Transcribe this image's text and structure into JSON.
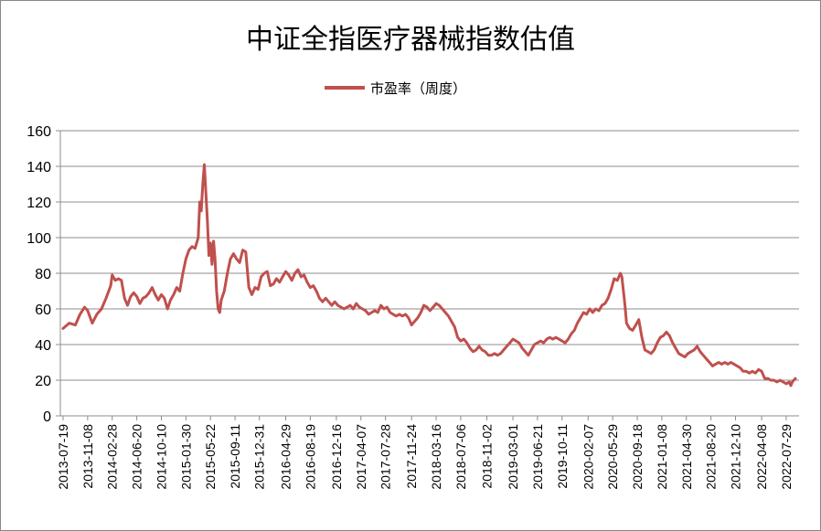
{
  "chart_data": {
    "type": "line",
    "title": "中证全指医疗器械指数估值",
    "xlabel": "",
    "ylabel": "",
    "ylim": [
      0,
      160
    ],
    "yticks": [
      0,
      20,
      40,
      60,
      80,
      100,
      120,
      140,
      160
    ],
    "grid": "horizontal",
    "legend_position": "top",
    "series": [
      {
        "name": "市盈率（周度）",
        "color": "#C0504D",
        "values": [
          [
            "2013-07-19",
            49
          ],
          [
            "2013-08-16",
            52
          ],
          [
            "2013-09-13",
            51
          ],
          [
            "2013-10-04",
            57
          ],
          [
            "2013-10-25",
            61
          ],
          [
            "2013-11-08",
            59
          ],
          [
            "2013-11-29",
            52
          ],
          [
            "2013-12-20",
            57
          ],
          [
            "2014-01-10",
            60
          ],
          [
            "2014-01-31",
            66
          ],
          [
            "2014-02-21",
            73
          ],
          [
            "2014-02-28",
            79
          ],
          [
            "2014-03-14",
            76
          ],
          [
            "2014-03-28",
            77
          ],
          [
            "2014-04-11",
            76
          ],
          [
            "2014-04-25",
            66
          ],
          [
            "2014-05-09",
            62
          ],
          [
            "2014-05-23",
            67
          ],
          [
            "2014-06-06",
            69
          ],
          [
            "2014-06-20",
            67
          ],
          [
            "2014-07-04",
            63
          ],
          [
            "2014-07-18",
            66
          ],
          [
            "2014-08-01",
            67
          ],
          [
            "2014-08-15",
            69
          ],
          [
            "2014-08-29",
            72
          ],
          [
            "2014-09-12",
            68
          ],
          [
            "2014-09-26",
            65
          ],
          [
            "2014-10-10",
            68
          ],
          [
            "2014-10-24",
            66
          ],
          [
            "2014-11-07",
            60
          ],
          [
            "2014-11-21",
            65
          ],
          [
            "2014-12-05",
            68
          ],
          [
            "2014-12-19",
            72
          ],
          [
            "2015-01-02",
            70
          ],
          [
            "2015-01-16",
            80
          ],
          [
            "2015-01-30",
            88
          ],
          [
            "2015-02-13",
            93
          ],
          [
            "2015-02-27",
            95
          ],
          [
            "2015-03-13",
            94
          ],
          [
            "2015-03-27",
            100
          ],
          [
            "2015-04-03",
            120
          ],
          [
            "2015-04-10",
            115
          ],
          [
            "2015-04-17",
            130
          ],
          [
            "2015-04-24",
            141
          ],
          [
            "2015-05-01",
            125
          ],
          [
            "2015-05-08",
            110
          ],
          [
            "2015-05-15",
            90
          ],
          [
            "2015-05-22",
            97
          ],
          [
            "2015-05-29",
            85
          ],
          [
            "2015-06-05",
            98
          ],
          [
            "2015-06-12",
            88
          ],
          [
            "2015-06-19",
            70
          ],
          [
            "2015-06-26",
            60
          ],
          [
            "2015-07-03",
            58
          ],
          [
            "2015-07-10",
            65
          ],
          [
            "2015-07-24",
            70
          ],
          [
            "2015-08-07",
            80
          ],
          [
            "2015-08-21",
            88
          ],
          [
            "2015-09-04",
            91
          ],
          [
            "2015-09-18",
            88
          ],
          [
            "2015-10-02",
            86
          ],
          [
            "2015-10-16",
            93
          ],
          [
            "2015-10-30",
            92
          ],
          [
            "2015-11-13",
            72
          ],
          [
            "2015-11-27",
            68
          ],
          [
            "2015-12-11",
            72
          ],
          [
            "2015-12-25",
            71
          ],
          [
            "2016-01-08",
            78
          ],
          [
            "2016-01-22",
            80
          ],
          [
            "2016-02-05",
            81
          ],
          [
            "2016-02-19",
            73
          ],
          [
            "2016-03-04",
            74
          ],
          [
            "2016-03-18",
            77
          ],
          [
            "2016-04-01",
            75
          ],
          [
            "2016-04-15",
            78
          ],
          [
            "2016-04-29",
            81
          ],
          [
            "2016-05-13",
            79
          ],
          [
            "2016-05-27",
            76
          ],
          [
            "2016-06-10",
            80
          ],
          [
            "2016-06-24",
            82
          ],
          [
            "2016-07-08",
            78
          ],
          [
            "2016-07-22",
            79
          ],
          [
            "2016-08-05",
            75
          ],
          [
            "2016-08-19",
            72
          ],
          [
            "2016-09-02",
            73
          ],
          [
            "2016-09-16",
            70
          ],
          [
            "2016-09-30",
            66
          ],
          [
            "2016-10-14",
            64
          ],
          [
            "2016-10-28",
            66
          ],
          [
            "2016-11-11",
            64
          ],
          [
            "2016-11-25",
            62
          ],
          [
            "2016-12-09",
            64
          ],
          [
            "2016-12-23",
            62
          ],
          [
            "2017-01-06",
            61
          ],
          [
            "2017-01-20",
            60
          ],
          [
            "2017-02-03",
            61
          ],
          [
            "2017-02-17",
            62
          ],
          [
            "2017-03-03",
            60
          ],
          [
            "2017-03-17",
            63
          ],
          [
            "2017-03-31",
            61
          ],
          [
            "2017-04-14",
            60
          ],
          [
            "2017-04-28",
            59
          ],
          [
            "2017-05-12",
            57
          ],
          [
            "2017-05-26",
            58
          ],
          [
            "2017-06-09",
            59
          ],
          [
            "2017-06-23",
            58
          ],
          [
            "2017-07-07",
            62
          ],
          [
            "2017-07-21",
            60
          ],
          [
            "2017-08-04",
            61
          ],
          [
            "2017-08-18",
            58
          ],
          [
            "2017-09-01",
            57
          ],
          [
            "2017-09-15",
            56
          ],
          [
            "2017-09-29",
            57
          ],
          [
            "2017-10-13",
            56
          ],
          [
            "2017-10-27",
            57
          ],
          [
            "2017-11-10",
            55
          ],
          [
            "2017-11-24",
            51
          ],
          [
            "2017-12-08",
            53
          ],
          [
            "2017-12-22",
            55
          ],
          [
            "2018-01-05",
            58
          ],
          [
            "2018-01-19",
            62
          ],
          [
            "2018-02-02",
            61
          ],
          [
            "2018-02-16",
            59
          ],
          [
            "2018-03-02",
            61
          ],
          [
            "2018-03-16",
            63
          ],
          [
            "2018-03-30",
            62
          ],
          [
            "2018-04-13",
            60
          ],
          [
            "2018-04-27",
            58
          ],
          [
            "2018-05-11",
            56
          ],
          [
            "2018-05-25",
            53
          ],
          [
            "2018-06-08",
            50
          ],
          [
            "2018-06-22",
            44
          ],
          [
            "2018-07-06",
            42
          ],
          [
            "2018-07-20",
            43
          ],
          [
            "2018-08-03",
            41
          ],
          [
            "2018-08-17",
            38
          ],
          [
            "2018-08-31",
            36
          ],
          [
            "2018-09-14",
            37
          ],
          [
            "2018-09-28",
            39
          ],
          [
            "2018-10-12",
            37
          ],
          [
            "2018-10-26",
            36
          ],
          [
            "2018-11-09",
            34
          ],
          [
            "2018-11-23",
            34
          ],
          [
            "2018-12-07",
            35
          ],
          [
            "2018-12-21",
            34
          ],
          [
            "2019-01-04",
            35
          ],
          [
            "2019-01-18",
            37
          ],
          [
            "2019-02-01",
            39
          ],
          [
            "2019-02-15",
            41
          ],
          [
            "2019-03-01",
            43
          ],
          [
            "2019-03-15",
            42
          ],
          [
            "2019-03-29",
            41
          ],
          [
            "2019-04-12",
            38
          ],
          [
            "2019-04-26",
            36
          ],
          [
            "2019-05-10",
            34
          ],
          [
            "2019-05-24",
            37
          ],
          [
            "2019-06-07",
            40
          ],
          [
            "2019-06-21",
            41
          ],
          [
            "2019-07-05",
            42
          ],
          [
            "2019-07-19",
            41
          ],
          [
            "2019-08-02",
            43
          ],
          [
            "2019-08-16",
            44
          ],
          [
            "2019-08-30",
            43
          ],
          [
            "2019-09-13",
            44
          ],
          [
            "2019-09-27",
            43
          ],
          [
            "2019-10-11",
            42
          ],
          [
            "2019-10-25",
            41
          ],
          [
            "2019-11-08",
            43
          ],
          [
            "2019-11-22",
            46
          ],
          [
            "2019-12-06",
            48
          ],
          [
            "2019-12-20",
            52
          ],
          [
            "2020-01-03",
            55
          ],
          [
            "2020-01-17",
            58
          ],
          [
            "2020-01-31",
            57
          ],
          [
            "2020-02-14",
            60
          ],
          [
            "2020-02-28",
            58
          ],
          [
            "2020-03-13",
            60
          ],
          [
            "2020-03-27",
            59
          ],
          [
            "2020-04-10",
            62
          ],
          [
            "2020-04-24",
            63
          ],
          [
            "2020-05-08",
            66
          ],
          [
            "2020-05-22",
            71
          ],
          [
            "2020-06-05",
            77
          ],
          [
            "2020-06-19",
            76
          ],
          [
            "2020-07-03",
            80
          ],
          [
            "2020-07-10",
            78
          ],
          [
            "2020-07-17",
            70
          ],
          [
            "2020-07-24",
            62
          ],
          [
            "2020-07-31",
            52
          ],
          [
            "2020-08-14",
            49
          ],
          [
            "2020-08-28",
            48
          ],
          [
            "2020-09-11",
            51
          ],
          [
            "2020-09-25",
            54
          ],
          [
            "2020-10-09",
            44
          ],
          [
            "2020-10-23",
            37
          ],
          [
            "2020-11-06",
            36
          ],
          [
            "2020-11-20",
            35
          ],
          [
            "2020-12-04",
            37
          ],
          [
            "2020-12-18",
            41
          ],
          [
            "2021-01-01",
            44
          ],
          [
            "2021-01-15",
            45
          ],
          [
            "2021-01-29",
            47
          ],
          [
            "2021-02-12",
            45
          ],
          [
            "2021-02-26",
            41
          ],
          [
            "2021-03-12",
            38
          ],
          [
            "2021-03-26",
            35
          ],
          [
            "2021-04-09",
            34
          ],
          [
            "2021-04-23",
            33
          ],
          [
            "2021-05-07",
            35
          ],
          [
            "2021-05-21",
            36
          ],
          [
            "2021-06-04",
            37
          ],
          [
            "2021-06-18",
            39
          ],
          [
            "2021-07-02",
            36
          ],
          [
            "2021-07-16",
            34
          ],
          [
            "2021-07-30",
            32
          ],
          [
            "2021-08-13",
            30
          ],
          [
            "2021-08-27",
            28
          ],
          [
            "2021-09-10",
            29
          ],
          [
            "2021-09-24",
            30
          ],
          [
            "2021-10-08",
            29
          ],
          [
            "2021-10-22",
            30
          ],
          [
            "2021-11-05",
            29
          ],
          [
            "2021-11-19",
            30
          ],
          [
            "2021-12-03",
            29
          ],
          [
            "2021-12-17",
            28
          ],
          [
            "2021-12-31",
            27
          ],
          [
            "2022-01-14",
            25
          ],
          [
            "2022-01-28",
            25
          ],
          [
            "2022-02-11",
            24
          ],
          [
            "2022-02-25",
            25
          ],
          [
            "2022-03-11",
            24
          ],
          [
            "2022-03-25",
            26
          ],
          [
            "2022-04-08",
            25
          ],
          [
            "2022-04-22",
            21
          ],
          [
            "2022-05-06",
            21
          ],
          [
            "2022-05-20",
            20
          ],
          [
            "2022-06-03",
            20
          ],
          [
            "2022-06-17",
            19
          ],
          [
            "2022-07-01",
            20
          ],
          [
            "2022-07-15",
            19
          ],
          [
            "2022-07-29",
            18
          ],
          [
            "2022-08-12",
            19
          ],
          [
            "2022-08-19",
            17
          ],
          [
            "2022-08-26",
            19
          ],
          [
            "2022-09-09",
            21
          ]
        ]
      }
    ],
    "x_tick_labels": [
      "2013-07-19",
      "2013-11-08",
      "2014-02-28",
      "2014-06-20",
      "2014-10-10",
      "2015-01-30",
      "2015-05-22",
      "2015-09-11",
      "2015-12-31",
      "2016-04-29",
      "2016-08-19",
      "2016-12-16",
      "2017-04-07",
      "2017-07-28",
      "2017-11-24",
      "2018-03-16",
      "2018-07-06",
      "2018-11-02",
      "2019-03-01",
      "2019-06-21",
      "2019-10-11",
      "2020-02-07",
      "2020-05-29",
      "2020-09-18",
      "2021-01-08",
      "2021-04-30",
      "2021-08-20",
      "2021-12-10",
      "2022-04-08",
      "2022-07-29"
    ]
  }
}
